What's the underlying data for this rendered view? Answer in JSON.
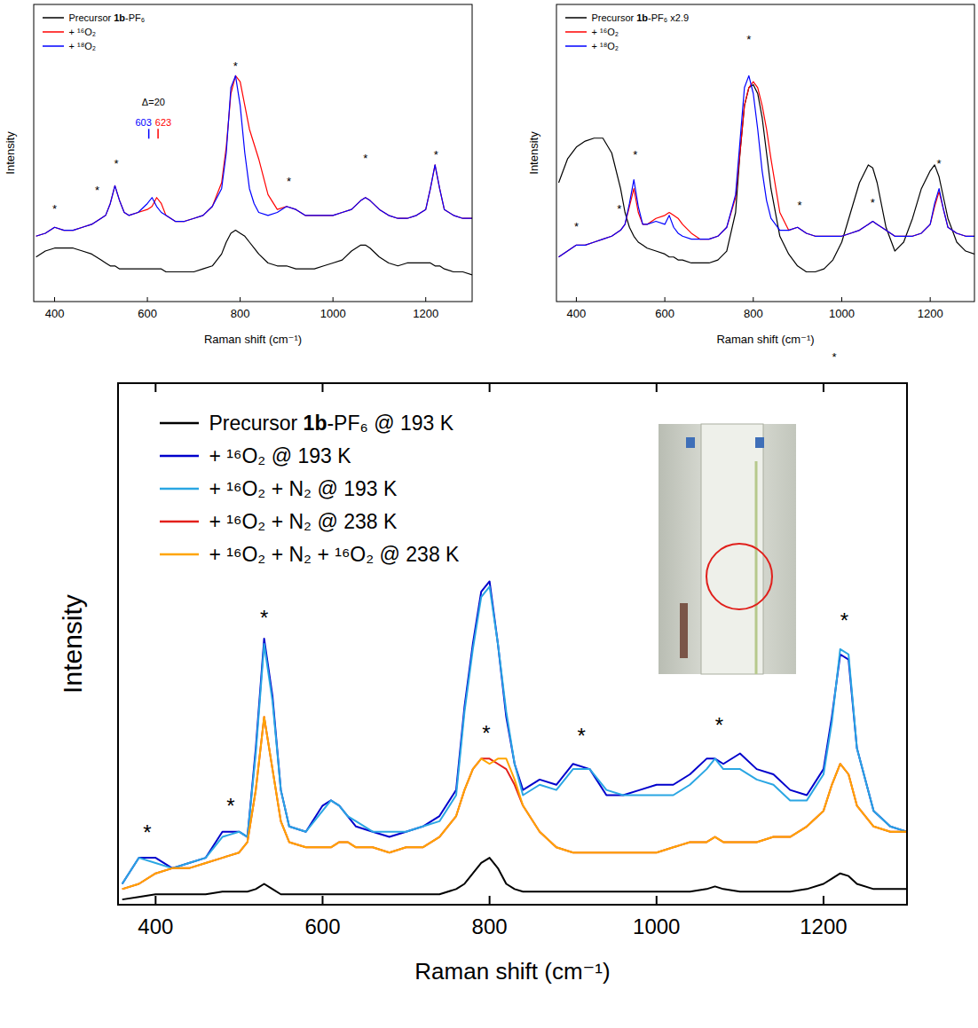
{
  "chart_data": [
    {
      "type": "line",
      "x_label": "Raman shift (cm⁻¹)",
      "y_label": "Intensity",
      "xlim": [
        355,
        1300
      ],
      "xticks": [
        400,
        600,
        800,
        1000,
        1200
      ],
      "ylim": [
        0,
        100
      ],
      "tick_labels": "x",
      "legend": "top-left",
      "x": [
        360,
        380,
        400,
        420,
        440,
        460,
        480,
        500,
        510,
        520,
        530,
        540,
        550,
        560,
        580,
        600,
        610,
        620,
        630,
        640,
        660,
        680,
        700,
        720,
        740,
        760,
        770,
        780,
        790,
        800,
        810,
        820,
        830,
        840,
        860,
        880,
        900,
        920,
        940,
        960,
        980,
        1000,
        1020,
        1040,
        1060,
        1070,
        1080,
        1100,
        1120,
        1140,
        1160,
        1180,
        1200,
        1210,
        1220,
        1230,
        1240,
        1260,
        1280,
        1300
      ],
      "series": [
        {
          "name": "Precursor 1b-PF₆",
          "color": "#000000",
          "values": [
            15,
            17,
            18,
            18,
            18,
            17,
            16,
            14,
            13,
            12,
            12,
            11,
            11,
            11,
            11,
            11,
            11,
            11,
            11,
            10,
            10,
            10,
            10,
            11,
            12,
            16,
            20,
            23,
            24,
            23,
            22,
            20,
            18,
            16,
            13,
            12,
            12,
            11,
            11,
            11,
            12,
            13,
            14,
            17,
            19,
            19,
            18,
            15,
            13,
            12,
            13,
            13,
            13,
            13,
            12,
            12,
            11,
            10,
            10,
            9
          ]
        },
        {
          "name": "+ ¹⁶O₂",
          "color": "#ff0000",
          "values": [
            22,
            23,
            25,
            24,
            24,
            25,
            26,
            28,
            29,
            33,
            39,
            34,
            30,
            29,
            30,
            31,
            32,
            35,
            33,
            29,
            27,
            27,
            28,
            29,
            32,
            40,
            52,
            70,
            76,
            74,
            66,
            58,
            53,
            48,
            36,
            31,
            32,
            31,
            29,
            29,
            29,
            29,
            30,
            31,
            34,
            35,
            34,
            31,
            29,
            28,
            28,
            29,
            31,
            38,
            46,
            38,
            31,
            29,
            28,
            28
          ]
        },
        {
          "name": "+ ¹⁸O₂",
          "color": "#0000ff",
          "values": [
            22,
            23,
            25,
            24,
            24,
            25,
            26,
            28,
            29,
            33,
            39,
            34,
            30,
            29,
            30,
            33,
            35,
            32,
            30,
            29,
            27,
            27,
            28,
            29,
            32,
            38,
            50,
            72,
            76,
            66,
            50,
            38,
            33,
            30,
            29,
            30,
            32,
            31,
            29,
            29,
            29,
            29,
            30,
            31,
            34,
            35,
            34,
            31,
            29,
            28,
            28,
            29,
            31,
            38,
            46,
            38,
            31,
            29,
            28,
            28
          ]
        }
      ],
      "annotations": [
        {
          "text": "*",
          "x": 400,
          "y": 30
        },
        {
          "text": "*",
          "x": 492,
          "y": 36
        },
        {
          "text": "*",
          "x": 533,
          "y": 45
        },
        {
          "text": "*",
          "x": 790,
          "y": 78
        },
        {
          "text": "*",
          "x": 905,
          "y": 39
        },
        {
          "text": "*",
          "x": 1070,
          "y": 47
        },
        {
          "text": "*",
          "x": 1222,
          "y": 48
        },
        {
          "text": "Δ=20",
          "x": 613,
          "y": 66
        },
        {
          "text": "603",
          "x": 603,
          "y": 59,
          "color": "#0000ff"
        },
        {
          "text": "623",
          "x": 623,
          "y": 59,
          "color": "#ff0000"
        }
      ]
    },
    {
      "type": "line",
      "x_label": "Raman shift (cm⁻¹)",
      "y_label": "Intensity",
      "xlim": [
        355,
        1300
      ],
      "xticks": [
        400,
        600,
        800,
        1000,
        1200
      ],
      "ylim": [
        0,
        100
      ],
      "tick_labels": "x",
      "legend": "top-left",
      "x": [
        360,
        380,
        400,
        420,
        440,
        460,
        480,
        500,
        510,
        520,
        530,
        540,
        550,
        560,
        580,
        600,
        610,
        620,
        630,
        640,
        660,
        680,
        700,
        720,
        740,
        760,
        770,
        780,
        790,
        800,
        810,
        820,
        830,
        840,
        860,
        880,
        900,
        920,
        940,
        960,
        980,
        1000,
        1020,
        1040,
        1060,
        1070,
        1080,
        1100,
        1120,
        1140,
        1160,
        1180,
        1200,
        1210,
        1220,
        1230,
        1240,
        1260,
        1280,
        1300
      ],
      "series": [
        {
          "name": "Precursor 1b-PF₆ x2.9",
          "color": "#000000",
          "values": [
            40,
            48,
            52,
            54,
            55,
            55,
            50,
            38,
            30,
            25,
            22,
            20,
            19,
            18,
            17,
            16,
            15,
            15,
            14,
            14,
            13,
            13,
            13,
            14,
            17,
            30,
            50,
            66,
            72,
            73,
            70,
            62,
            50,
            38,
            22,
            16,
            12,
            10,
            10,
            11,
            14,
            20,
            30,
            40,
            46,
            45,
            40,
            25,
            17,
            20,
            28,
            38,
            44,
            46,
            42,
            35,
            28,
            20,
            17,
            16
          ]
        },
        {
          "name": "+ ¹⁶O₂",
          "color": "#ff0000",
          "values": [
            15,
            17,
            19,
            19,
            20,
            21,
            22,
            24,
            26,
            32,
            38,
            30,
            26,
            26,
            28,
            29,
            30,
            29,
            28,
            26,
            23,
            21,
            21,
            22,
            25,
            35,
            50,
            66,
            72,
            74,
            72,
            66,
            58,
            48,
            30,
            24,
            25,
            23,
            22,
            22,
            22,
            22,
            23,
            24,
            26,
            27,
            26,
            24,
            22,
            22,
            22,
            23,
            26,
            32,
            37,
            31,
            25,
            23,
            22,
            22
          ]
        },
        {
          "name": "+ ¹⁸O₂",
          "color": "#0000ff",
          "values": [
            15,
            17,
            19,
            19,
            20,
            21,
            22,
            24,
            26,
            33,
            41,
            32,
            26,
            26,
            27,
            26,
            29,
            25,
            23,
            22,
            21,
            21,
            21,
            22,
            25,
            36,
            54,
            72,
            76,
            70,
            58,
            44,
            34,
            28,
            24,
            24,
            25,
            23,
            22,
            22,
            22,
            22,
            23,
            24,
            26,
            27,
            26,
            24,
            22,
            22,
            22,
            23,
            26,
            33,
            38,
            31,
            25,
            23,
            22,
            22
          ]
        }
      ],
      "annotations": [
        {
          "text": "*",
          "x": 400,
          "y": 24
        },
        {
          "text": "*",
          "x": 497,
          "y": 30
        },
        {
          "text": "*",
          "x": 533,
          "y": 48
        },
        {
          "text": "*",
          "x": 790,
          "y": 87
        },
        {
          "text": "*",
          "x": 905,
          "y": 31
        },
        {
          "text": "*",
          "x": 1070,
          "y": 32
        },
        {
          "text": "*",
          "x": 1220,
          "y": 45
        },
        {
          "text": "*",
          "x": 983,
          "y": -20
        }
      ]
    },
    {
      "type": "line",
      "x_label": "Raman shift (cm⁻¹)",
      "y_label": "Intensity",
      "xlim": [
        355,
        1300
      ],
      "xticks": [
        400,
        600,
        800,
        1000,
        1200
      ],
      "ylim": [
        0,
        100
      ],
      "tick_labels": "x",
      "legend": "top-left",
      "x": [
        360,
        380,
        400,
        420,
        440,
        460,
        480,
        500,
        510,
        520,
        530,
        540,
        550,
        560,
        580,
        600,
        610,
        620,
        630,
        640,
        660,
        680,
        700,
        720,
        740,
        760,
        770,
        780,
        790,
        800,
        810,
        820,
        830,
        840,
        860,
        880,
        900,
        920,
        940,
        960,
        980,
        1000,
        1020,
        1040,
        1060,
        1070,
        1080,
        1100,
        1120,
        1140,
        1160,
        1180,
        1200,
        1210,
        1220,
        1230,
        1240,
        1260,
        1280,
        1300
      ],
      "series": [
        {
          "name": "Precursor 1b-PF₆ @ 193 K",
          "color": "#000000",
          "values": [
            1,
            1.5,
            2,
            2,
            2,
            2,
            2.5,
            2.5,
            2.5,
            3,
            4,
            3,
            2,
            2,
            2,
            2,
            2,
            2,
            2,
            2,
            2,
            2,
            2,
            2,
            2,
            3,
            4,
            6,
            8,
            9,
            7,
            4,
            3,
            2.5,
            2.5,
            2.5,
            2.5,
            2.5,
            2.5,
            2.5,
            2.5,
            2.5,
            2.5,
            2.5,
            3,
            3.5,
            3,
            2.5,
            2.5,
            2.5,
            2.5,
            3,
            4,
            5,
            6,
            5.5,
            4,
            3,
            3,
            3
          ]
        },
        {
          "name": "+ ¹⁶O₂ @ 193 K",
          "color": "#0000cc",
          "values": [
            4,
            9,
            9,
            7,
            8,
            9,
            14,
            14,
            13,
            30,
            51,
            40,
            22,
            15,
            14,
            19,
            20,
            19,
            17,
            15,
            14,
            13,
            14,
            15,
            17,
            22,
            38,
            50,
            60,
            62,
            50,
            36,
            27,
            22,
            24,
            23,
            27,
            26,
            21,
            21,
            22,
            23,
            23,
            25,
            28,
            28,
            27,
            29,
            26,
            25,
            22,
            21,
            26,
            36,
            48,
            47,
            30,
            18,
            15,
            14
          ]
        },
        {
          "name": "+ ¹⁶O₂ + N₂ @ 193 K",
          "color": "#2aa6e3",
          "values": [
            4,
            9,
            8,
            7,
            8,
            9,
            13,
            14,
            13,
            29,
            50,
            39,
            22,
            15,
            14,
            18,
            20,
            19,
            17,
            16,
            14,
            14,
            14,
            15,
            16,
            21,
            37,
            49,
            59,
            61,
            50,
            37,
            27,
            21,
            23,
            22,
            26,
            26,
            22,
            21,
            21,
            21,
            21,
            23,
            26,
            28,
            26,
            26,
            24,
            23,
            20,
            20,
            25,
            35,
            49,
            48,
            30,
            18,
            15,
            14
          ]
        },
        {
          "name": "+ ¹⁶O₂ + N₂ @ 238 K",
          "color": "#e3201b",
          "values": [
            3,
            4,
            6,
            7,
            7,
            8,
            9,
            10,
            12,
            22,
            36,
            26,
            16,
            12,
            11,
            11,
            11,
            12,
            12,
            11,
            11,
            10,
            11,
            11,
            13,
            17,
            22,
            26,
            28,
            28,
            27,
            26,
            23,
            19,
            14,
            11,
            10,
            10,
            10,
            10,
            10,
            10,
            11,
            12,
            12,
            13,
            12,
            12,
            12,
            13,
            13,
            15,
            18,
            23,
            27,
            25,
            19,
            15,
            14,
            14
          ]
        },
        {
          "name": "+ ¹⁶O₂ + N₂ + ¹⁶O₂ @ 238 K",
          "color": "#ffa500",
          "values": [
            3,
            4,
            6,
            7,
            7,
            8,
            9,
            10,
            12,
            22,
            36,
            26,
            16,
            12,
            11,
            11,
            11,
            12,
            12,
            11,
            11,
            10,
            11,
            11,
            13,
            17,
            22,
            26,
            28,
            27,
            28,
            28,
            24,
            19,
            14,
            11,
            10,
            10,
            10,
            10,
            10,
            10,
            11,
            12,
            12,
            13,
            12,
            12,
            12,
            13,
            13,
            15,
            18,
            23,
            27,
            25,
            19,
            15,
            14,
            14
          ]
        }
      ],
      "annotations": [
        {
          "text": "*",
          "x": 390,
          "y": 12.5
        },
        {
          "text": "*",
          "x": 490,
          "y": 17.5
        },
        {
          "text": "*",
          "x": 530,
          "y": 53.5
        },
        {
          "text": "*",
          "x": 796,
          "y": 31.5
        },
        {
          "text": "*",
          "x": 910,
          "y": 31
        },
        {
          "text": "*",
          "x": 1075,
          "y": 33
        },
        {
          "text": "*",
          "x": 1225,
          "y": 53
        }
      ]
    }
  ]
}
